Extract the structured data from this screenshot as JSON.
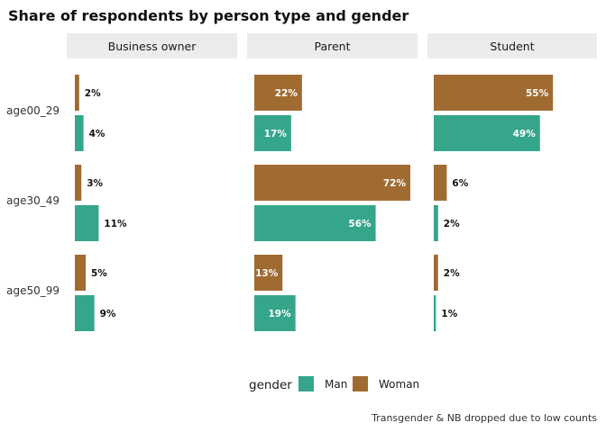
{
  "chart_data": {
    "type": "bar",
    "orientation": "horizontal",
    "title": "Share of respondents by person type and gender",
    "caption": "Transgender & NB dropped due to low counts",
    "facets": [
      "Business owner",
      "Parent",
      "Student"
    ],
    "categories": [
      "age00_29",
      "age30_49",
      "age50_99"
    ],
    "legend": {
      "title": "gender",
      "placement": "bottom",
      "entries": [
        "Man",
        "Woman"
      ]
    },
    "colors": {
      "Man": "#35a58b",
      "Woman": "#a06b31"
    },
    "xlim": [
      0,
      0.72
    ],
    "grid": false,
    "series": [
      {
        "name": "Woman",
        "values": {
          "Business owner": [
            0.02,
            0.03,
            0.05
          ],
          "Parent": [
            0.22,
            0.72,
            0.13
          ],
          "Student": [
            0.55,
            0.06,
            0.02
          ]
        },
        "labels": {
          "Business owner": [
            "2%",
            "3%",
            "5%"
          ],
          "Parent": [
            "22%",
            "72%",
            "13%"
          ],
          "Student": [
            "55%",
            "6%",
            "2%"
          ]
        }
      },
      {
        "name": "Man",
        "values": {
          "Business owner": [
            0.04,
            0.11,
            0.09
          ],
          "Parent": [
            0.17,
            0.56,
            0.19
          ],
          "Student": [
            0.49,
            0.02,
            0.01
          ]
        },
        "labels": {
          "Business owner": [
            "4%",
            "11%",
            "9%"
          ],
          "Parent": [
            "17%",
            "56%",
            "19%"
          ],
          "Student": [
            "49%",
            "2%",
            "1%"
          ]
        }
      }
    ]
  }
}
